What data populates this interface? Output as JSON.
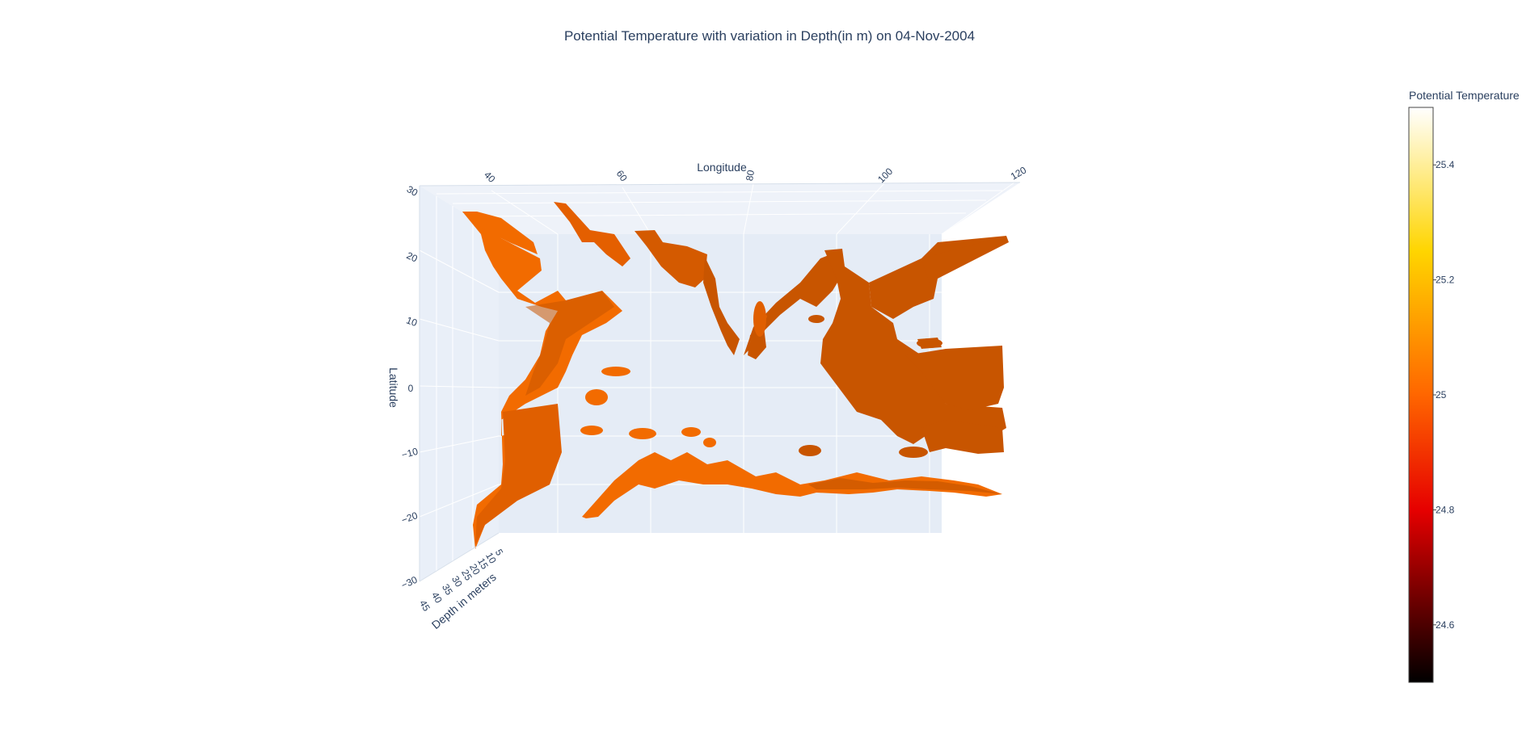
{
  "chart_data": {
    "type": "surface",
    "title": "Potential Temperature with variation in Depth(in m) on 04-Nov-2004",
    "xaxis": {
      "title": "Longitude",
      "ticks": [
        "40",
        "60",
        "80",
        "100",
        "120"
      ],
      "range": [
        30,
        130
      ]
    },
    "yaxis": {
      "title": "Latitude",
      "ticks": [
        "30",
        "20",
        "10",
        "0",
        "−10",
        "−20",
        "−30"
      ],
      "range": [
        -30,
        30
      ]
    },
    "zaxis": {
      "title": "Depth in meters",
      "ticks": [
        "5",
        "10",
        "15",
        "20",
        "25",
        "30",
        "35",
        "40",
        "45"
      ],
      "range": [
        5,
        45
      ]
    },
    "colorbar": {
      "title": "Potential Temperature",
      "ticks": [
        "25.4",
        "25.2",
        "25",
        "24.8",
        "24.6"
      ],
      "range": [
        24.5,
        25.5
      ],
      "colorscale": [
        "#000000",
        "#e60000",
        "#ff6600",
        "#ffd500",
        "#ffffff"
      ]
    },
    "surface_value": 25.0,
    "surface_colors": {
      "front": "#f26b00",
      "shade": "#c85500",
      "mid": "#e05f00"
    }
  }
}
